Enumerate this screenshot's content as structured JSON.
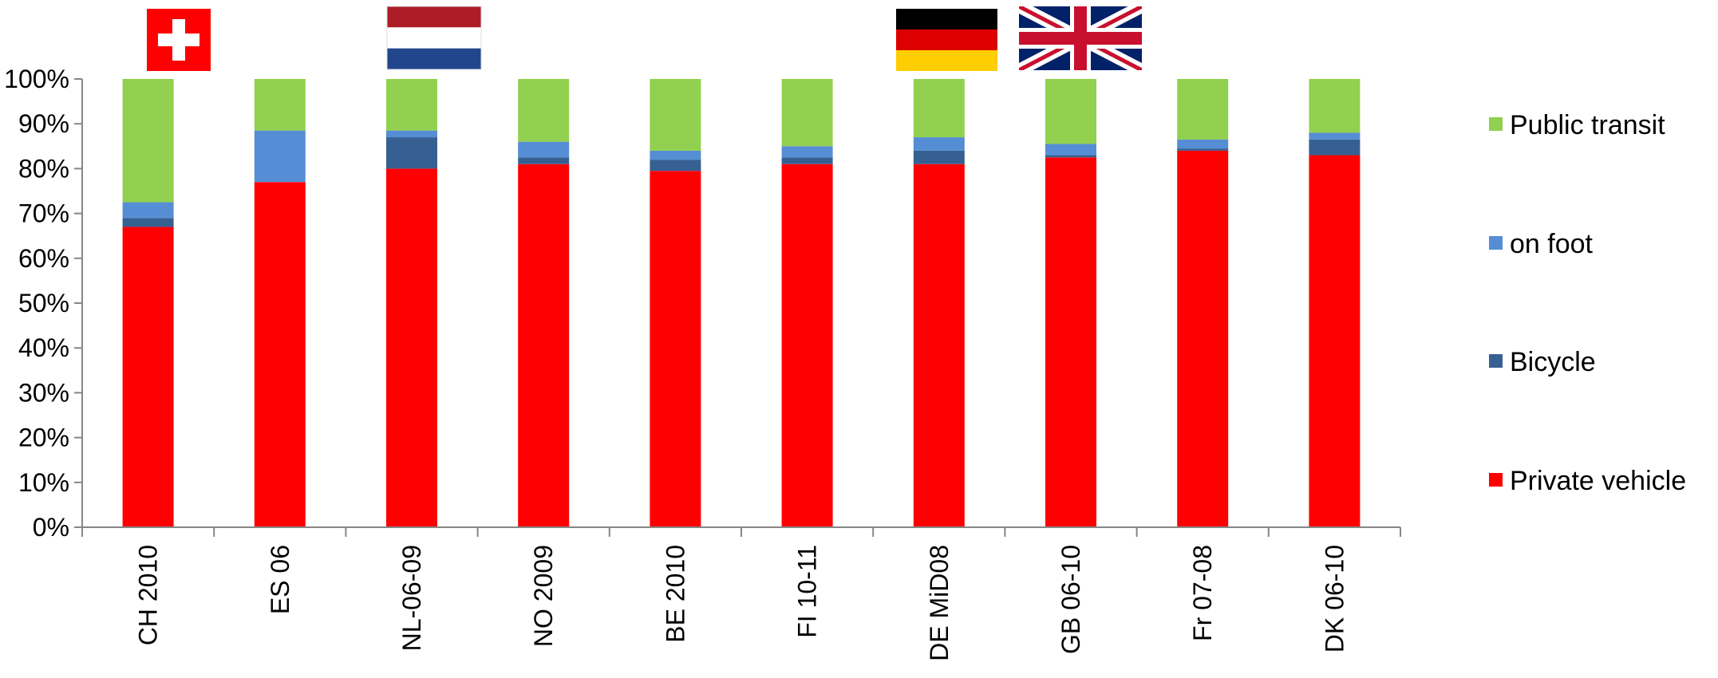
{
  "chart_data": {
    "type": "bar",
    "stacked": true,
    "percent": true,
    "categories": [
      "CH 2010",
      "ES 06",
      "NL-06-09",
      "NO 2009",
      "BE 2010",
      "FI 10-11",
      "DE MiD08",
      "GB 06-10",
      "Fr 07-08",
      "DK 06-10"
    ],
    "series": [
      {
        "name": "Private vehicle",
        "color": "#ff0000",
        "values": [
          67,
          77,
          80,
          81,
          79.5,
          81,
          81,
          82.5,
          84,
          83
        ]
      },
      {
        "name": "Bicycle",
        "color": "#376092",
        "values": [
          2,
          0,
          7,
          1.5,
          2.5,
          1.5,
          3,
          0.5,
          0.5,
          3.5
        ]
      },
      {
        "name": "on foot",
        "color": "#558ed5",
        "values": [
          3.5,
          11.5,
          1.5,
          3.5,
          2,
          2.5,
          3,
          2.5,
          2,
          1.5
        ]
      },
      {
        "name": "Public transit",
        "color": "#92d050",
        "values": [
          27.5,
          11.5,
          11.5,
          14,
          16,
          15,
          13,
          14.5,
          13.5,
          12
        ]
      }
    ],
    "legend_order": [
      "Public transit",
      "on foot",
      "Bicycle",
      "Private vehicle"
    ],
    "y_ticks": [
      "0%",
      "10%",
      "20%",
      "30%",
      "40%",
      "50%",
      "60%",
      "70%",
      "80%",
      "90%",
      "100%"
    ],
    "ylim": [
      0,
      100
    ],
    "grid": false,
    "legend_position": "right",
    "flags": [
      {
        "country": "switzerland",
        "category": "CH 2010"
      },
      {
        "country": "netherlands",
        "category": "NL-06-09"
      },
      {
        "country": "germany",
        "category": "DE MiD08"
      },
      {
        "country": "united-kingdom",
        "category": "GB 06-10"
      }
    ]
  }
}
